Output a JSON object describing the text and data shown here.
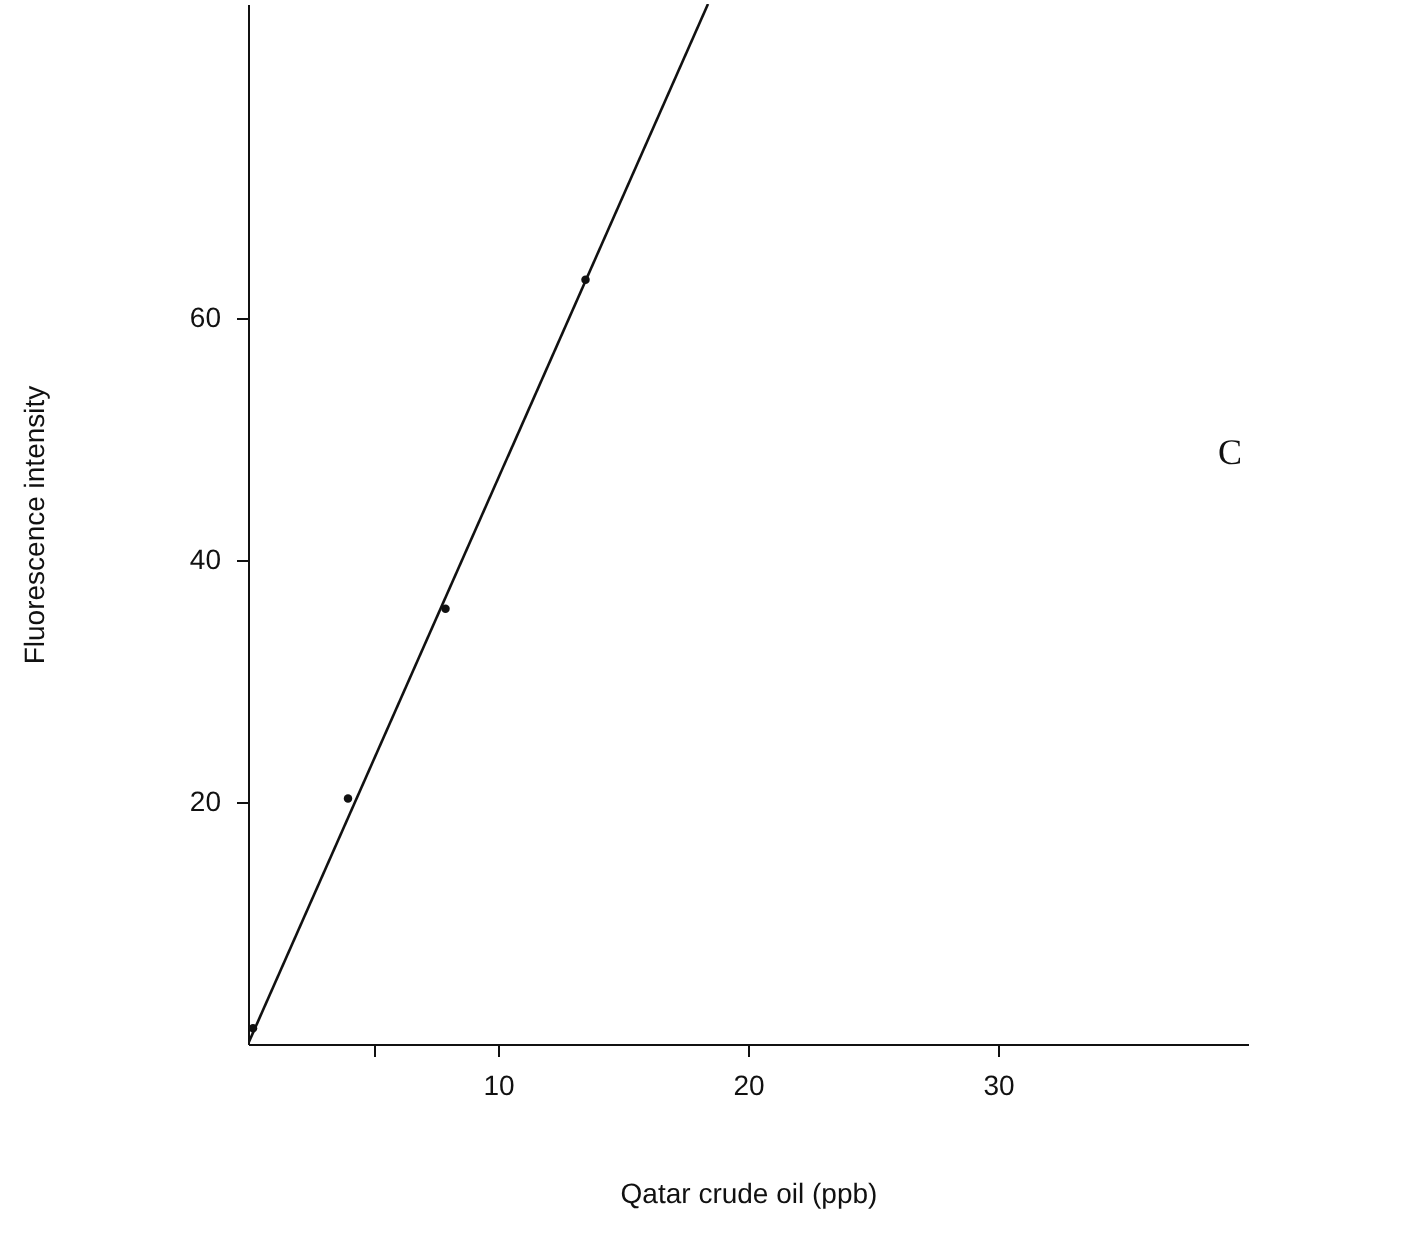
{
  "chart_data": {
    "type": "scatter",
    "xlabel": "Qatar crude oil (ppb)",
    "ylabel": "Fluorescence intensity",
    "annotations": [
      "C"
    ],
    "series": [
      {
        "color": "#111111",
        "x": [
          0.2,
          4.0,
          7.9,
          13.5
        ],
        "values": [
          1.3,
          20.3,
          36,
          63.2
        ]
      },
      {
        "type": "line",
        "marker": "none",
        "color": "#111111",
        "x": [
          0,
          18.4
        ],
        "values": [
          0,
          86
        ]
      }
    ],
    "marker": "circle",
    "line_style": "solid",
    "grid": false,
    "xlim": [
      0,
      40
    ],
    "ylim": [
      0,
      86
    ],
    "xticks": [
      {
        "value": 5,
        "label": null
      },
      10,
      20,
      30
    ],
    "yticks": [
      20,
      40,
      60
    ]
  }
}
